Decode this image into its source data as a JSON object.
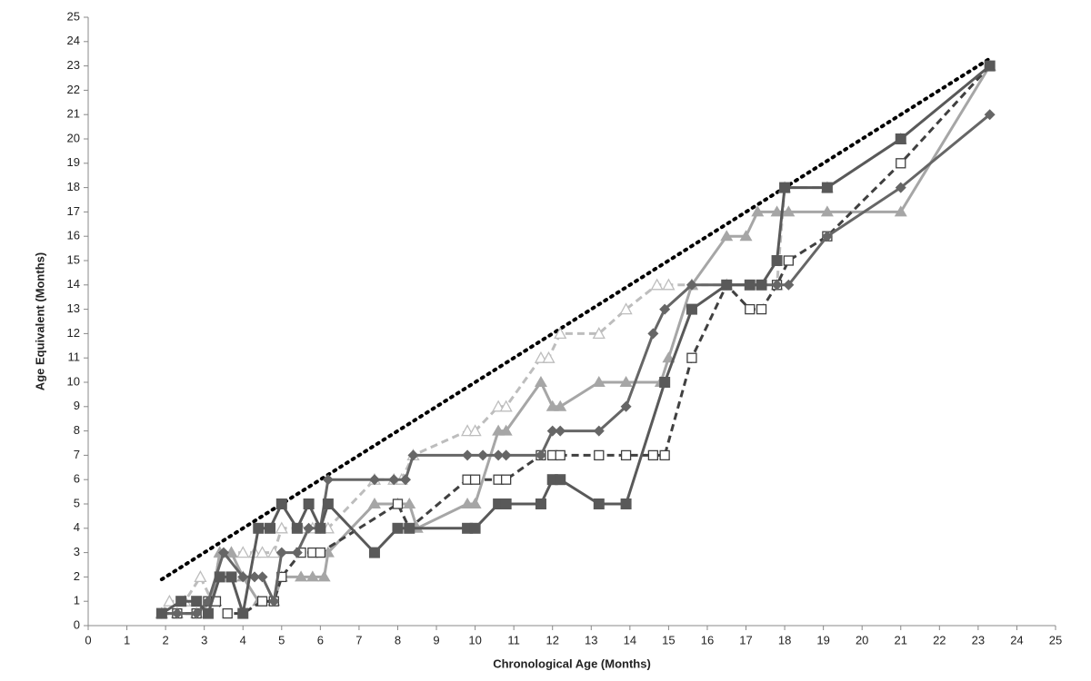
{
  "chart_data": {
    "type": "line",
    "x_label": "Chronological Age (Months)",
    "y_label": "Age Equivalent (Months)",
    "xlim": [
      0,
      25
    ],
    "ylim": [
      0,
      25
    ],
    "xticks": [
      0,
      1,
      2,
      3,
      4,
      5,
      6,
      7,
      8,
      9,
      10,
      11,
      12,
      13,
      14,
      15,
      16,
      17,
      18,
      19,
      20,
      21,
      22,
      23,
      24,
      25
    ],
    "yticks": [
      0,
      1,
      2,
      3,
      4,
      5,
      6,
      7,
      8,
      9,
      10,
      11,
      12,
      13,
      14,
      15,
      16,
      17,
      18,
      19,
      20,
      21,
      22,
      23,
      24,
      25
    ],
    "grid": false,
    "series": [
      {
        "color": "#000000",
        "marker": "none",
        "dash": "dotted",
        "x": [
          1.9,
          23.3
        ],
        "values": [
          1.9,
          23.3
        ]
      },
      {
        "color": "#bdbdbd",
        "marker": "triangle-open",
        "dash": "dashed",
        "x": [
          1.9,
          2.1,
          2.5,
          2.9,
          3.2,
          3.4,
          3.7,
          4.0,
          4.3,
          4.5,
          4.8,
          5.0,
          5.5,
          5.8,
          6.2,
          7.4,
          7.9,
          8.1,
          8.4,
          9.8,
          10.0,
          10.6,
          10.8,
          11.7,
          11.9,
          12.2,
          13.2,
          13.9,
          14.7,
          15.0,
          15.6,
          16.5,
          17.8,
          18.0,
          19.1,
          21.0,
          23.3
        ],
        "values": [
          0.5,
          1,
          1,
          2,
          1,
          3,
          3,
          3,
          3,
          3,
          3,
          4,
          4,
          4,
          4,
          6,
          6,
          6,
          7,
          8,
          8,
          9,
          9,
          11,
          11,
          12,
          12,
          13,
          14,
          14,
          14,
          14,
          14,
          18,
          18,
          20,
          23
        ]
      },
      {
        "color": "#a6a6a6",
        "marker": "triangle",
        "dash": "solid",
        "x": [
          1.9,
          2.3,
          2.8,
          3.2,
          3.4,
          3.7,
          4.0,
          4.4,
          4.8,
          5.0,
          5.5,
          5.8,
          6.1,
          6.2,
          7.4,
          8.0,
          8.3,
          8.5,
          9.8,
          10.0,
          10.6,
          10.8,
          11.7,
          12.0,
          12.2,
          13.2,
          13.9,
          14.8,
          15.0,
          15.6,
          16.5,
          17.0,
          17.3,
          17.8,
          18.1,
          19.1,
          21.0,
          23.3
        ],
        "values": [
          0.5,
          0.5,
          0.5,
          1,
          3,
          3,
          2,
          1,
          1,
          2,
          2,
          2,
          2,
          3,
          5,
          5,
          5,
          4,
          5,
          5,
          8,
          8,
          10,
          9,
          9,
          10,
          10,
          10,
          11,
          14,
          16,
          16,
          17,
          17,
          17,
          17,
          17,
          23
        ]
      },
      {
        "color": "#404040",
        "marker": "square-open",
        "dash": "dashed",
        "x": [
          1.9,
          2.3,
          2.8,
          3.1,
          3.3,
          3.6,
          4.0,
          4.5,
          4.8,
          5.0,
          5.5,
          5.8,
          6.0,
          8.0,
          8.3,
          9.8,
          10.0,
          10.6,
          10.8,
          11.7,
          12.0,
          12.2,
          13.2,
          13.9,
          14.6,
          14.9,
          15.6,
          16.5,
          17.1,
          17.4,
          17.8,
          18.1,
          19.1,
          21.0,
          23.3
        ],
        "values": [
          0.5,
          0.5,
          0.5,
          1,
          1,
          0.5,
          0.5,
          1,
          1,
          2,
          3,
          3,
          3,
          5,
          4,
          6,
          6,
          6,
          6,
          7,
          7,
          7,
          7,
          7,
          7,
          7,
          11,
          14,
          13,
          13,
          14,
          15,
          16,
          19,
          23
        ]
      },
      {
        "color": "#666666",
        "marker": "diamond",
        "dash": "solid",
        "x": [
          1.9,
          2.3,
          2.8,
          3.1,
          3.5,
          4.0,
          4.3,
          4.5,
          4.8,
          5.0,
          5.4,
          5.7,
          6.0,
          6.2,
          7.4,
          7.9,
          8.2,
          8.4,
          9.8,
          10.2,
          10.6,
          10.8,
          11.7,
          12.0,
          12.2,
          13.2,
          13.9,
          14.6,
          14.9,
          15.6,
          16.5,
          17.8,
          18.1,
          19.1,
          21.0,
          23.3
        ],
        "values": [
          0.5,
          0.5,
          0.5,
          1,
          3,
          2,
          2,
          2,
          1,
          3,
          3,
          4,
          4,
          6,
          6,
          6,
          6,
          7,
          7,
          7,
          7,
          7,
          7,
          8,
          8,
          8,
          9,
          12,
          13,
          14,
          14,
          14,
          14,
          16,
          18,
          21
        ]
      },
      {
        "color": "#595959",
        "marker": "square",
        "dash": "solid",
        "x": [
          1.9,
          2.4,
          2.8,
          3.1,
          3.4,
          3.7,
          4.0,
          4.4,
          4.7,
          5.0,
          5.4,
          5.7,
          6.0,
          6.2,
          7.4,
          8.0,
          8.3,
          9.8,
          10.0,
          10.6,
          10.8,
          11.7,
          12.0,
          12.2,
          13.2,
          13.9,
          14.9,
          15.6,
          16.5,
          17.1,
          17.4,
          17.8,
          18.0,
          19.1,
          21.0,
          23.3
        ],
        "values": [
          0.5,
          1,
          1,
          0.5,
          2,
          2,
          0.5,
          4,
          4,
          5,
          4,
          5,
          4,
          5,
          3,
          4,
          4,
          4,
          4,
          5,
          5,
          5,
          6,
          6,
          5,
          5,
          10,
          13,
          14,
          14,
          14,
          15,
          18,
          18,
          20,
          23
        ]
      }
    ]
  }
}
